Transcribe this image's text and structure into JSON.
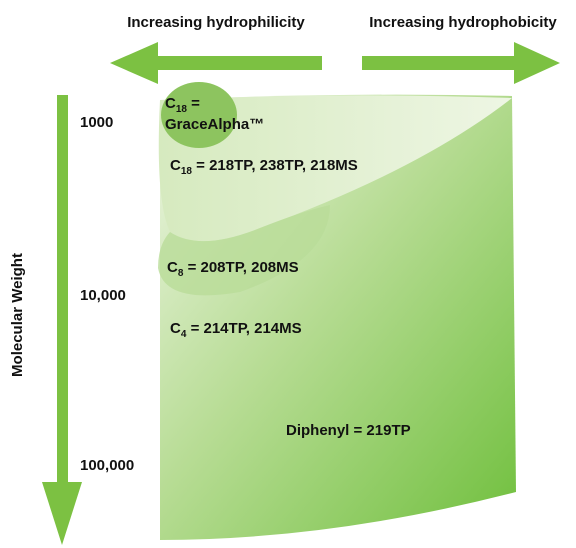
{
  "arrows": {
    "left": "Increasing hydrophilicity",
    "right": "Increasing hydrophobicity",
    "down": "Molecular Weight"
  },
  "y_labels": [
    "1000",
    "10,000",
    "100,000"
  ],
  "regions": [
    {
      "base": "C",
      "subscript": "18",
      "rest": " =",
      "line2": "GraceAlpha™"
    },
    {
      "base": "C",
      "subscript": "18",
      "rest": " = 218TP, 238TP, 218MS"
    },
    {
      "base": "C",
      "subscript": "8",
      "rest": " = 208TP, 208MS"
    },
    {
      "base": "C",
      "subscript": "4",
      "rest": " = 214TP, 214MS"
    },
    {
      "rest": "Diphenyl = 219TP"
    }
  ]
}
